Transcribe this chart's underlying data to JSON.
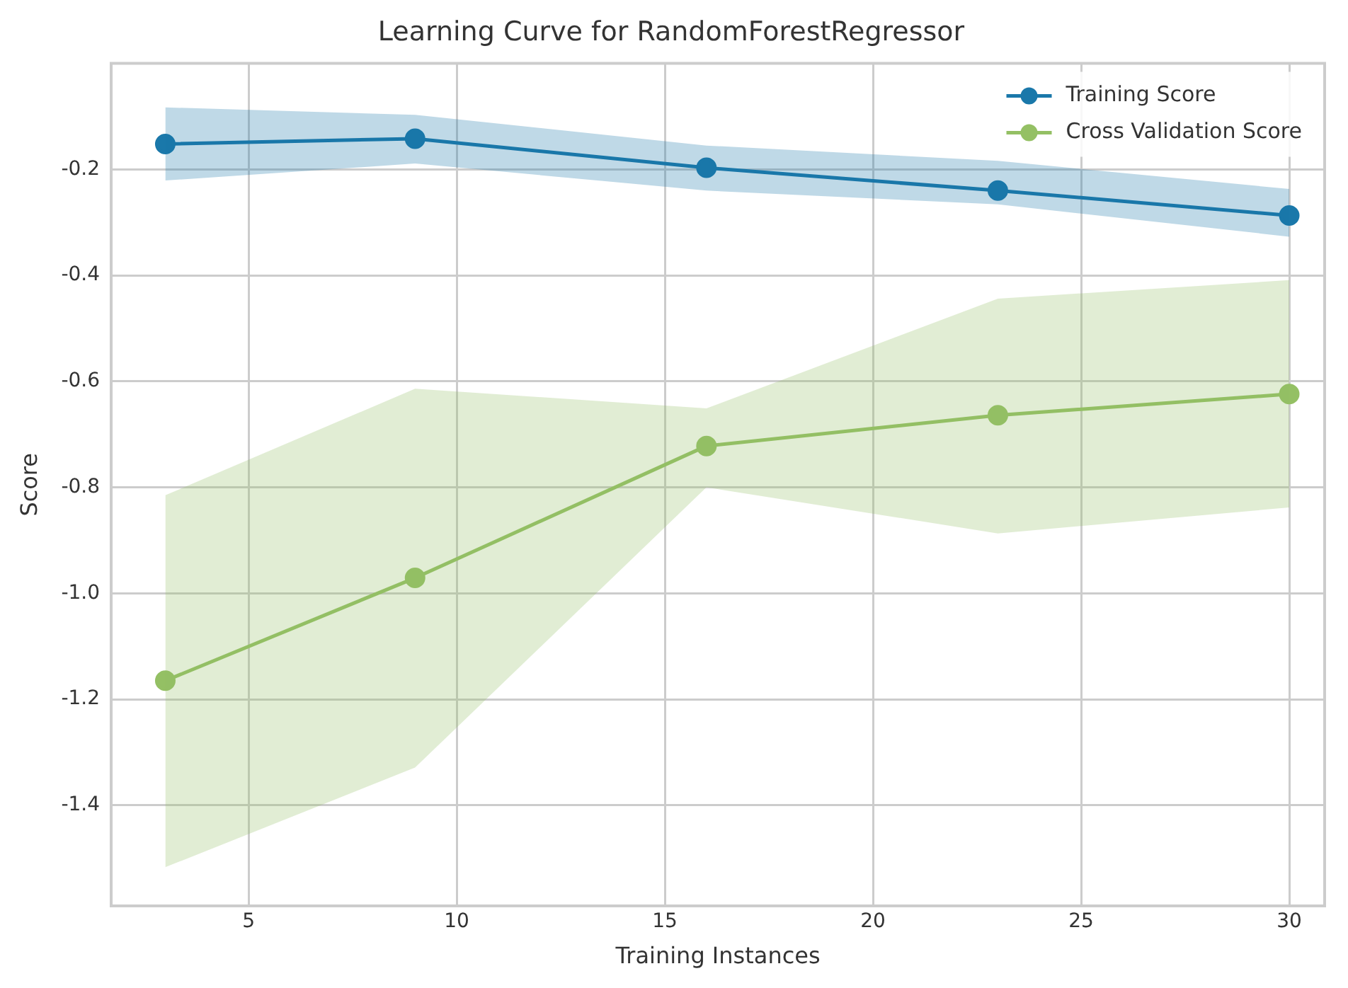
{
  "chart_data": {
    "type": "line",
    "title": "Learning Curve for RandomForestRegressor",
    "xlabel": "Training Instances",
    "ylabel": "Score",
    "x": [
      3,
      9,
      16,
      23,
      30
    ],
    "series": [
      {
        "name": "Training Score",
        "color": "#1a78aa",
        "values": [
          -0.152,
          -0.142,
          -0.197,
          -0.24,
          -0.287
        ],
        "lower": [
          -0.221,
          -0.189,
          -0.24,
          -0.266,
          -0.327
        ],
        "upper": [
          -0.083,
          -0.097,
          -0.155,
          -0.184,
          -0.237
        ]
      },
      {
        "name": "Cross Validation Score",
        "color": "#94c064",
        "values": [
          -1.165,
          -0.971,
          -0.722,
          -0.664,
          -0.624
        ],
        "lower": [
          -1.517,
          -1.329,
          -0.8,
          -0.887,
          -0.838
        ],
        "upper": [
          -0.815,
          -0.614,
          -0.651,
          -0.444,
          -0.409
        ]
      }
    ],
    "xlim": [
      1.7,
      30.85
    ],
    "xticks": [
      5,
      10,
      15,
      20,
      25,
      30
    ],
    "ylim": [
      -1.59,
      0
    ],
    "yticks": [
      -1.4,
      -1.2,
      {
        "value": -1,
        "label": "-1.0"
      },
      -0.8,
      -0.6,
      -0.4,
      -0.2
    ],
    "grid": true,
    "legend": "top right",
    "marker": "circle",
    "line_style": "solid"
  }
}
